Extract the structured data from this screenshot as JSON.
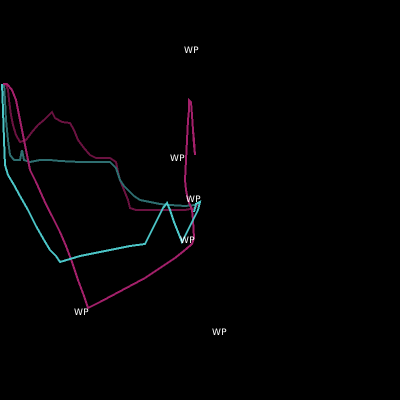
{
  "map": {
    "background_color": "#000000",
    "track_colors": {
      "magenta": "#a3206a",
      "dark_magenta": "#6a1240",
      "cyan": "#4cc6c8",
      "dark_teal": "#2e6e70"
    },
    "waypoints": [
      {
        "label": "WP"
      },
      {
        "label": "WP"
      },
      {
        "label": "WP"
      },
      {
        "label": "WP"
      },
      {
        "label": "WP"
      },
      {
        "label": "WP"
      }
    ]
  }
}
